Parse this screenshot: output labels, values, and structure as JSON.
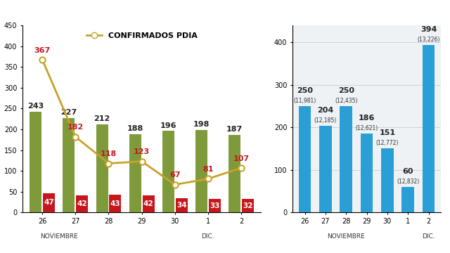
{
  "chart_data": [
    {
      "type": "bar",
      "categories": [
        "26",
        "27",
        "28",
        "29",
        "30",
        "1",
        "2"
      ],
      "period_labels": [
        {
          "label": "NOVIEMBRE",
          "from": "26",
          "to": "27"
        },
        {
          "label": "DIC.",
          "from": "1",
          "to": "1"
        }
      ],
      "series": [
        {
          "type": "bar",
          "color": "#7f9a3a",
          "values": [
            243,
            227,
            212,
            188,
            196,
            198,
            187
          ]
        },
        {
          "type": "bar",
          "color": "#c8161d",
          "values": [
            47,
            42,
            43,
            42,
            34,
            33,
            32
          ]
        },
        {
          "type": "line",
          "name": "CONFIRMADOS PDIA",
          "color": "#c9a227",
          "marker": "circle",
          "values": [
            367,
            182,
            118,
            123,
            67,
            81,
            107
          ]
        }
      ],
      "data_labels": true,
      "ylim": [
        0,
        450
      ],
      "yticks": [
        0,
        50,
        100,
        150,
        200,
        250,
        300,
        350,
        400,
        450
      ],
      "grid": false,
      "legend": "upper center"
    },
    {
      "type": "bar",
      "categories": [
        "26",
        "27",
        "28",
        "29",
        "30",
        "1",
        "2"
      ],
      "period_labels": [
        {
          "label": "NOVIEMBRE",
          "from": "27",
          "to": "29"
        },
        {
          "label": "DIC.",
          "from": "2",
          "to": "2"
        }
      ],
      "values": [
        250,
        204,
        250,
        186,
        151,
        60,
        394
      ],
      "totals": [
        11981,
        12185,
        12435,
        12621,
        12772,
        12832,
        13226
      ],
      "total_labels": [
        "(11,981)",
        "(12,185)",
        "(12,435)",
        "(12,621)",
        "(12,772)",
        "(12,832)",
        "(13,226)"
      ],
      "color": "#2a9fd6",
      "data_labels": true,
      "ylim": [
        0,
        440
      ],
      "yticks": [
        0,
        100,
        200,
        300,
        400
      ],
      "grid": true
    }
  ]
}
